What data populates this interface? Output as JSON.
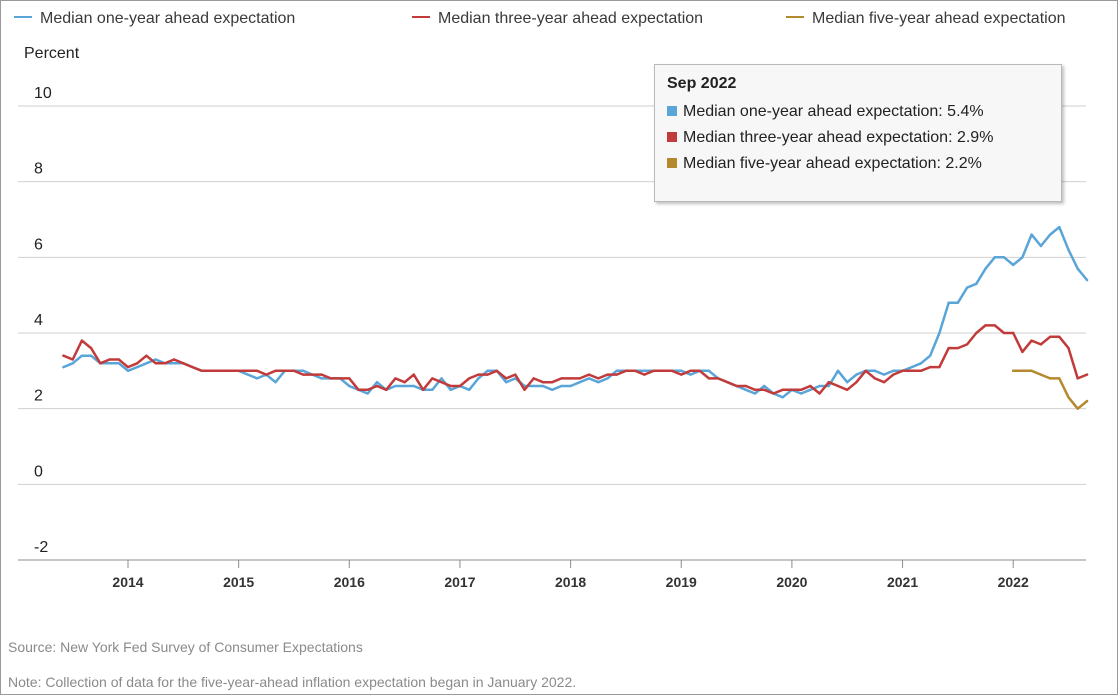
{
  "chart_data": {
    "type": "line",
    "ylabel": "Percent",
    "ylim": [
      -2,
      10
    ],
    "yticks": [
      "-2",
      "0",
      "2",
      "4",
      "6",
      "8",
      "10"
    ],
    "xticks": [
      "2014",
      "2015",
      "2016",
      "2017",
      "2018",
      "2019",
      "2020",
      "2021",
      "2022"
    ],
    "grid": "horizontal",
    "legend_position": "top",
    "series": [
      {
        "name": "Median one-year ahead expectation",
        "color": "#5aa5d8",
        "points": [
          [
            "2013-06",
            3.1
          ],
          [
            "2013-07",
            3.2
          ],
          [
            "2013-08",
            3.4
          ],
          [
            "2013-09",
            3.4
          ],
          [
            "2013-10",
            3.2
          ],
          [
            "2013-11",
            3.2
          ],
          [
            "2013-12",
            3.2
          ],
          [
            "2014-01",
            3.0
          ],
          [
            "2014-02",
            3.1
          ],
          [
            "2014-03",
            3.2
          ],
          [
            "2014-04",
            3.3
          ],
          [
            "2014-05",
            3.2
          ],
          [
            "2014-06",
            3.2
          ],
          [
            "2014-07",
            3.2
          ],
          [
            "2014-08",
            3.1
          ],
          [
            "2014-09",
            3.0
          ],
          [
            "2014-10",
            3.0
          ],
          [
            "2014-11",
            3.0
          ],
          [
            "2014-12",
            3.0
          ],
          [
            "2015-01",
            3.0
          ],
          [
            "2015-02",
            2.9
          ],
          [
            "2015-03",
            2.8
          ],
          [
            "2015-04",
            2.9
          ],
          [
            "2015-05",
            2.7
          ],
          [
            "2015-06",
            3.0
          ],
          [
            "2015-07",
            3.0
          ],
          [
            "2015-08",
            3.0
          ],
          [
            "2015-09",
            2.9
          ],
          [
            "2015-10",
            2.8
          ],
          [
            "2015-11",
            2.8
          ],
          [
            "2015-12",
            2.8
          ],
          [
            "2016-01",
            2.6
          ],
          [
            "2016-02",
            2.5
          ],
          [
            "2016-03",
            2.4
          ],
          [
            "2016-04",
            2.7
          ],
          [
            "2016-05",
            2.5
          ],
          [
            "2016-06",
            2.6
          ],
          [
            "2016-07",
            2.6
          ],
          [
            "2016-08",
            2.6
          ],
          [
            "2016-09",
            2.5
          ],
          [
            "2016-10",
            2.5
          ],
          [
            "2016-11",
            2.8
          ],
          [
            "2016-12",
            2.5
          ],
          [
            "2017-01",
            2.6
          ],
          [
            "2017-02",
            2.5
          ],
          [
            "2017-03",
            2.8
          ],
          [
            "2017-04",
            3.0
          ],
          [
            "2017-05",
            3.0
          ],
          [
            "2017-06",
            2.7
          ],
          [
            "2017-07",
            2.8
          ],
          [
            "2017-08",
            2.6
          ],
          [
            "2017-09",
            2.6
          ],
          [
            "2017-10",
            2.6
          ],
          [
            "2017-11",
            2.5
          ],
          [
            "2017-12",
            2.6
          ],
          [
            "2018-01",
            2.6
          ],
          [
            "2018-02",
            2.7
          ],
          [
            "2018-03",
            2.8
          ],
          [
            "2018-04",
            2.7
          ],
          [
            "2018-05",
            2.8
          ],
          [
            "2018-06",
            3.0
          ],
          [
            "2018-07",
            3.0
          ],
          [
            "2018-08",
            3.0
          ],
          [
            "2018-09",
            3.0
          ],
          [
            "2018-10",
            3.0
          ],
          [
            "2018-11",
            3.0
          ],
          [
            "2018-12",
            3.0
          ],
          [
            "2019-01",
            3.0
          ],
          [
            "2019-02",
            2.9
          ],
          [
            "2019-03",
            3.0
          ],
          [
            "2019-04",
            3.0
          ],
          [
            "2019-05",
            2.8
          ],
          [
            "2019-06",
            2.7
          ],
          [
            "2019-07",
            2.6
          ],
          [
            "2019-08",
            2.5
          ],
          [
            "2019-09",
            2.4
          ],
          [
            "2019-10",
            2.6
          ],
          [
            "2019-11",
            2.4
          ],
          [
            "2019-12",
            2.3
          ],
          [
            "2020-01",
            2.5
          ],
          [
            "2020-02",
            2.4
          ],
          [
            "2020-03",
            2.5
          ],
          [
            "2020-04",
            2.6
          ],
          [
            "2020-05",
            2.6
          ],
          [
            "2020-06",
            3.0
          ],
          [
            "2020-07",
            2.7
          ],
          [
            "2020-08",
            2.9
          ],
          [
            "2020-09",
            3.0
          ],
          [
            "2020-10",
            3.0
          ],
          [
            "2020-11",
            2.9
          ],
          [
            "2020-12",
            3.0
          ],
          [
            "2021-01",
            3.0
          ],
          [
            "2021-02",
            3.1
          ],
          [
            "2021-03",
            3.2
          ],
          [
            "2021-04",
            3.4
          ],
          [
            "2021-05",
            4.0
          ],
          [
            "2021-06",
            4.8
          ],
          [
            "2021-07",
            4.8
          ],
          [
            "2021-08",
            5.2
          ],
          [
            "2021-09",
            5.3
          ],
          [
            "2021-10",
            5.7
          ],
          [
            "2021-11",
            6.0
          ],
          [
            "2021-12",
            6.0
          ],
          [
            "2022-01",
            5.8
          ],
          [
            "2022-02",
            6.0
          ],
          [
            "2022-03",
            6.6
          ],
          [
            "2022-04",
            6.3
          ],
          [
            "2022-05",
            6.6
          ],
          [
            "2022-06",
            6.8
          ],
          [
            "2022-07",
            6.2
          ],
          [
            "2022-08",
            5.7
          ],
          [
            "2022-09",
            5.4
          ]
        ]
      },
      {
        "name": "Median three-year ahead expectation",
        "color": "#c23b3b",
        "points": [
          [
            "2013-06",
            3.4
          ],
          [
            "2013-07",
            3.3
          ],
          [
            "2013-08",
            3.8
          ],
          [
            "2013-09",
            3.6
          ],
          [
            "2013-10",
            3.2
          ],
          [
            "2013-11",
            3.3
          ],
          [
            "2013-12",
            3.3
          ],
          [
            "2014-01",
            3.1
          ],
          [
            "2014-02",
            3.2
          ],
          [
            "2014-03",
            3.4
          ],
          [
            "2014-04",
            3.2
          ],
          [
            "2014-05",
            3.2
          ],
          [
            "2014-06",
            3.3
          ],
          [
            "2014-07",
            3.2
          ],
          [
            "2014-08",
            3.1
          ],
          [
            "2014-09",
            3.0
          ],
          [
            "2014-10",
            3.0
          ],
          [
            "2014-11",
            3.0
          ],
          [
            "2014-12",
            3.0
          ],
          [
            "2015-01",
            3.0
          ],
          [
            "2015-02",
            3.0
          ],
          [
            "2015-03",
            3.0
          ],
          [
            "2015-04",
            2.9
          ],
          [
            "2015-05",
            3.0
          ],
          [
            "2015-06",
            3.0
          ],
          [
            "2015-07",
            3.0
          ],
          [
            "2015-08",
            2.9
          ],
          [
            "2015-09",
            2.9
          ],
          [
            "2015-10",
            2.9
          ],
          [
            "2015-11",
            2.8
          ],
          [
            "2015-12",
            2.8
          ],
          [
            "2016-01",
            2.8
          ],
          [
            "2016-02",
            2.5
          ],
          [
            "2016-03",
            2.5
          ],
          [
            "2016-04",
            2.6
          ],
          [
            "2016-05",
            2.5
          ],
          [
            "2016-06",
            2.8
          ],
          [
            "2016-07",
            2.7
          ],
          [
            "2016-08",
            2.9
          ],
          [
            "2016-09",
            2.5
          ],
          [
            "2016-10",
            2.8
          ],
          [
            "2016-11",
            2.7
          ],
          [
            "2016-12",
            2.6
          ],
          [
            "2017-01",
            2.6
          ],
          [
            "2017-02",
            2.8
          ],
          [
            "2017-03",
            2.9
          ],
          [
            "2017-04",
            2.9
          ],
          [
            "2017-05",
            3.0
          ],
          [
            "2017-06",
            2.8
          ],
          [
            "2017-07",
            2.9
          ],
          [
            "2017-08",
            2.5
          ],
          [
            "2017-09",
            2.8
          ],
          [
            "2017-10",
            2.7
          ],
          [
            "2017-11",
            2.7
          ],
          [
            "2017-12",
            2.8
          ],
          [
            "2018-01",
            2.8
          ],
          [
            "2018-02",
            2.8
          ],
          [
            "2018-03",
            2.9
          ],
          [
            "2018-04",
            2.8
          ],
          [
            "2018-05",
            2.9
          ],
          [
            "2018-06",
            2.9
          ],
          [
            "2018-07",
            3.0
          ],
          [
            "2018-08",
            3.0
          ],
          [
            "2018-09",
            2.9
          ],
          [
            "2018-10",
            3.0
          ],
          [
            "2018-11",
            3.0
          ],
          [
            "2018-12",
            3.0
          ],
          [
            "2019-01",
            2.9
          ],
          [
            "2019-02",
            3.0
          ],
          [
            "2019-03",
            3.0
          ],
          [
            "2019-04",
            2.8
          ],
          [
            "2019-05",
            2.8
          ],
          [
            "2019-06",
            2.7
          ],
          [
            "2019-07",
            2.6
          ],
          [
            "2019-08",
            2.6
          ],
          [
            "2019-09",
            2.5
          ],
          [
            "2019-10",
            2.5
          ],
          [
            "2019-11",
            2.4
          ],
          [
            "2019-12",
            2.5
          ],
          [
            "2020-01",
            2.5
          ],
          [
            "2020-02",
            2.5
          ],
          [
            "2020-03",
            2.6
          ],
          [
            "2020-04",
            2.4
          ],
          [
            "2020-05",
            2.7
          ],
          [
            "2020-06",
            2.6
          ],
          [
            "2020-07",
            2.5
          ],
          [
            "2020-08",
            2.7
          ],
          [
            "2020-09",
            3.0
          ],
          [
            "2020-10",
            2.8
          ],
          [
            "2020-11",
            2.7
          ],
          [
            "2020-12",
            2.9
          ],
          [
            "2021-01",
            3.0
          ],
          [
            "2021-02",
            3.0
          ],
          [
            "2021-03",
            3.0
          ],
          [
            "2021-04",
            3.1
          ],
          [
            "2021-05",
            3.1
          ],
          [
            "2021-06",
            3.6
          ],
          [
            "2021-07",
            3.6
          ],
          [
            "2021-08",
            3.7
          ],
          [
            "2021-09",
            4.0
          ],
          [
            "2021-10",
            4.2
          ],
          [
            "2021-11",
            4.2
          ],
          [
            "2021-12",
            4.0
          ],
          [
            "2022-01",
            4.0
          ],
          [
            "2022-02",
            3.5
          ],
          [
            "2022-03",
            3.8
          ],
          [
            "2022-04",
            3.7
          ],
          [
            "2022-05",
            3.9
          ],
          [
            "2022-06",
            3.9
          ],
          [
            "2022-07",
            3.6
          ],
          [
            "2022-08",
            2.8
          ],
          [
            "2022-09",
            2.9
          ]
        ]
      },
      {
        "name": "Median five-year ahead expectation",
        "color": "#b58a2e",
        "points": [
          [
            "2022-01",
            3.0
          ],
          [
            "2022-02",
            3.0
          ],
          [
            "2022-03",
            3.0
          ],
          [
            "2022-04",
            2.9
          ],
          [
            "2022-05",
            2.8
          ],
          [
            "2022-06",
            2.8
          ],
          [
            "2022-07",
            2.3
          ],
          [
            "2022-08",
            2.0
          ],
          [
            "2022-09",
            2.2
          ]
        ]
      }
    ]
  },
  "tooltip": {
    "title": "Sep 2022",
    "rows": [
      {
        "label": "Median one-year ahead expectation: 5.4%",
        "color": "#5aa5d8"
      },
      {
        "label": "Median three-year ahead expectation: 2.9%",
        "color": "#c23b3b"
      },
      {
        "label": "Median five-year ahead expectation: 2.2%",
        "color": "#b58a2e"
      }
    ]
  },
  "footer": {
    "source": "Source: New York Fed Survey of Consumer Expectations",
    "note": "Note: Collection of data for the five-year-ahead inflation expectation began in January 2022."
  }
}
